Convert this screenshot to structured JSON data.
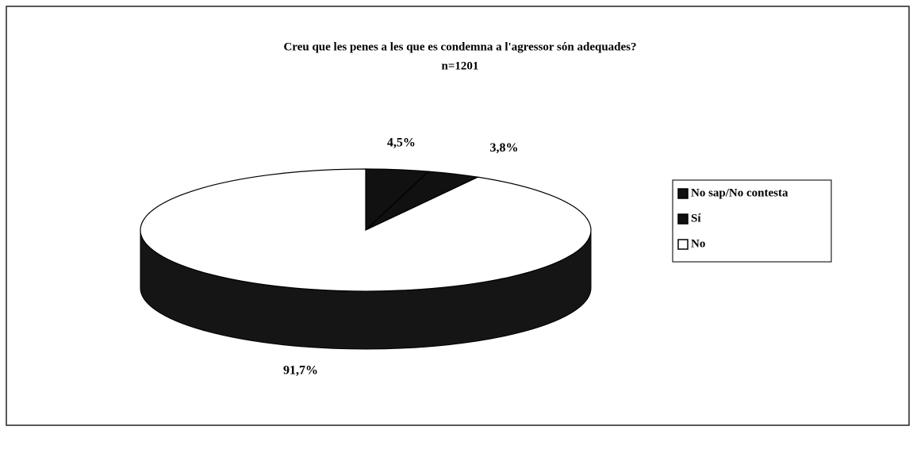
{
  "chart_data": {
    "type": "pie",
    "title": "Creu que les penes a les que es condemna a l'agressor són adequades?",
    "subtitle": "n=1201",
    "categories": [
      "No sap/No contesta",
      "Sí",
      "No"
    ],
    "values": [
      4.5,
      3.8,
      91.7
    ],
    "value_labels": [
      "4,5%",
      "3,8%",
      "91,7%"
    ],
    "colors": [
      "#111111",
      "#111111",
      "#ffffff"
    ],
    "legend": "right"
  }
}
